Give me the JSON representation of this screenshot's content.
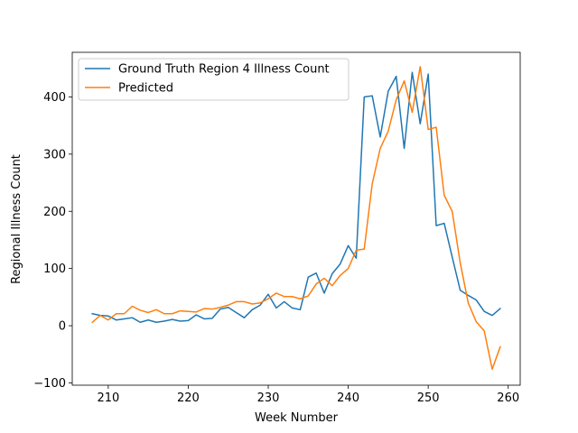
{
  "chart_data": {
    "type": "line",
    "title": "",
    "xlabel": "Week Number",
    "ylabel": "Regional Illness Count",
    "xlim": [
      205.5,
      261.5
    ],
    "ylim": [
      -104,
      478
    ],
    "xticks": [
      210,
      220,
      230,
      240,
      250,
      260
    ],
    "yticks": [
      -100,
      0,
      100,
      200,
      300,
      400
    ],
    "grid": false,
    "legend_position": "top-left",
    "x": [
      208,
      209,
      210,
      211,
      212,
      213,
      214,
      215,
      216,
      217,
      218,
      219,
      220,
      221,
      222,
      223,
      224,
      225,
      226,
      227,
      228,
      229,
      230,
      231,
      232,
      233,
      234,
      235,
      236,
      237,
      238,
      239,
      240,
      241,
      242,
      243,
      244,
      245,
      246,
      247,
      248,
      249,
      250,
      251,
      252,
      253,
      254,
      255,
      256,
      257,
      258,
      259
    ],
    "series": [
      {
        "name": "Ground Truth Region 4 Illness Count",
        "color": "#1f77b4",
        "values": [
          21,
          18,
          17,
          10,
          12,
          14,
          6,
          10,
          6,
          8,
          11,
          8,
          9,
          19,
          12,
          13,
          29,
          32,
          23,
          14,
          28,
          36,
          55,
          31,
          42,
          31,
          28,
          85,
          92,
          57,
          91,
          108,
          140,
          118,
          400,
          402,
          330,
          410,
          436,
          310,
          443,
          353,
          440,
          175,
          179,
          120,
          62,
          53,
          45,
          25,
          18,
          30
        ]
      },
      {
        "name": "Predicted",
        "color": "#ff7f0e",
        "values": [
          6,
          18,
          10,
          21,
          21,
          34,
          27,
          23,
          28,
          21,
          21,
          26,
          25,
          24,
          30,
          29,
          32,
          36,
          42,
          42,
          38,
          40,
          47,
          57,
          51,
          51,
          47,
          52,
          73,
          83,
          70,
          88,
          100,
          132,
          134,
          248,
          310,
          340,
          395,
          428,
          373,
          453,
          343,
          347,
          228,
          200,
          110,
          40,
          7,
          -9,
          -76,
          -37
        ]
      }
    ]
  }
}
